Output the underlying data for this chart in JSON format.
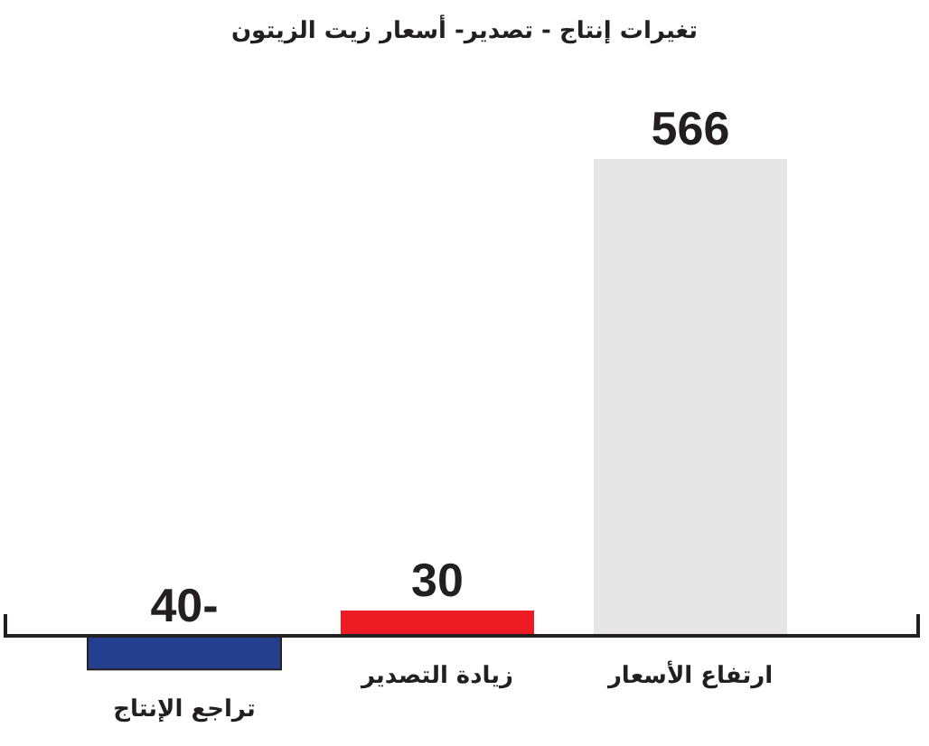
{
  "chart_data": {
    "type": "bar",
    "title": "تغيرات إنتاج - تصدير- أسعار زيت الزيتون",
    "categories": [
      "تراجع الإنتاج",
      "زيادة التصدير",
      "ارتفاع الأسعار"
    ],
    "values": [
      -40,
      30,
      566
    ],
    "colors": [
      "#233f8d",
      "#ed1c24",
      "#e6e6e6"
    ],
    "data_labels": true
  }
}
